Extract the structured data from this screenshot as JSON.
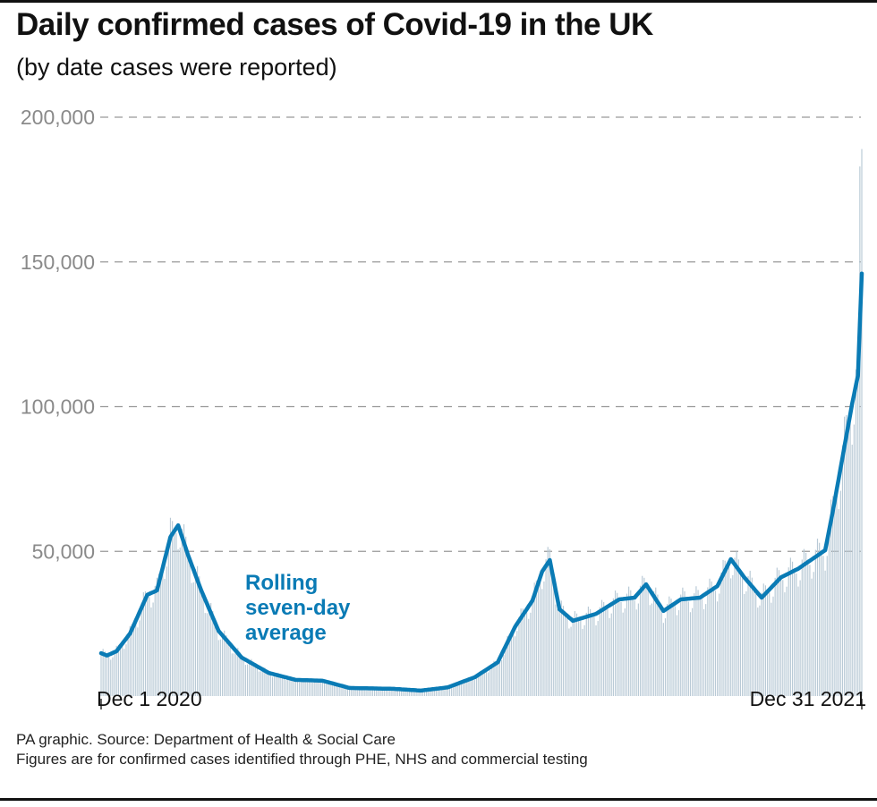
{
  "title": "Daily confirmed cases of Covid-19 in the UK",
  "subtitle": "(by date cases were reported)",
  "footer": {
    "source": "PA graphic. Source: Department of Health & Social Care",
    "note": "Figures are for confirmed cases identified through PHE, NHS and commercial testing"
  },
  "chart_data": {
    "type": "bar",
    "title": "Daily confirmed cases of Covid-19 in the UK",
    "subtitle": "(by date cases were reported)",
    "ylim": [
      0,
      200000
    ],
    "yticks": [
      50000,
      100000,
      150000,
      200000
    ],
    "ytick_labels": [
      "50,000",
      "100,000",
      "150,000",
      "200,000"
    ],
    "xlim": [
      "2020-12-01",
      "2021-12-31"
    ],
    "xtick_labels": [
      "Dec 1 2020",
      "Dec 31 2021"
    ],
    "grid": "horizontal dashed",
    "colors": {
      "bars": "#b9cad6",
      "line": "#0a7bb5",
      "grid": "#999999",
      "tick_text": "#8a8a8a"
    },
    "annotation": {
      "lines": [
        "Rolling",
        "seven-day",
        "average"
      ]
    },
    "series": [
      {
        "name": "Rolling seven-day average",
        "type": "line",
        "dates": [
          "2020-12-01",
          "2020-12-04",
          "2020-12-09",
          "2020-12-16",
          "2020-12-25",
          "2020-12-30",
          "2021-01-06",
          "2021-01-10",
          "2021-01-15",
          "2021-01-22",
          "2021-01-31",
          "2021-02-12",
          "2021-02-26",
          "2021-03-12",
          "2021-03-26",
          "2021-04-09",
          "2021-05-02",
          "2021-05-16",
          "2021-05-30",
          "2021-06-13",
          "2021-06-25",
          "2021-07-04",
          "2021-07-13",
          "2021-07-18",
          "2021-07-22",
          "2021-07-27",
          "2021-08-03",
          "2021-08-15",
          "2021-08-27",
          "2021-09-04",
          "2021-09-10",
          "2021-09-19",
          "2021-09-28",
          "2021-10-08",
          "2021-10-17",
          "2021-10-24",
          "2021-10-31",
          "2021-11-09",
          "2021-11-19",
          "2021-11-28",
          "2021-12-12",
          "2021-12-16",
          "2021-12-26",
          "2021-12-29",
          "2021-12-31"
        ],
        "values": [
          14800,
          14000,
          15500,
          21600,
          35000,
          36500,
          55000,
          59000,
          49000,
          36500,
          22500,
          13300,
          8000,
          5600,
          5300,
          2800,
          2500,
          1900,
          3000,
          6500,
          11700,
          24000,
          33000,
          43000,
          47000,
          30000,
          26000,
          28400,
          33400,
          34000,
          38600,
          29400,
          33400,
          34000,
          38000,
          47300,
          41000,
          34000,
          41000,
          44000,
          50400,
          64000,
          101000,
          110700,
          146000
        ]
      },
      {
        "name": "Daily confirmed cases",
        "type": "bar",
        "daily_max": 189000
      }
    ]
  }
}
